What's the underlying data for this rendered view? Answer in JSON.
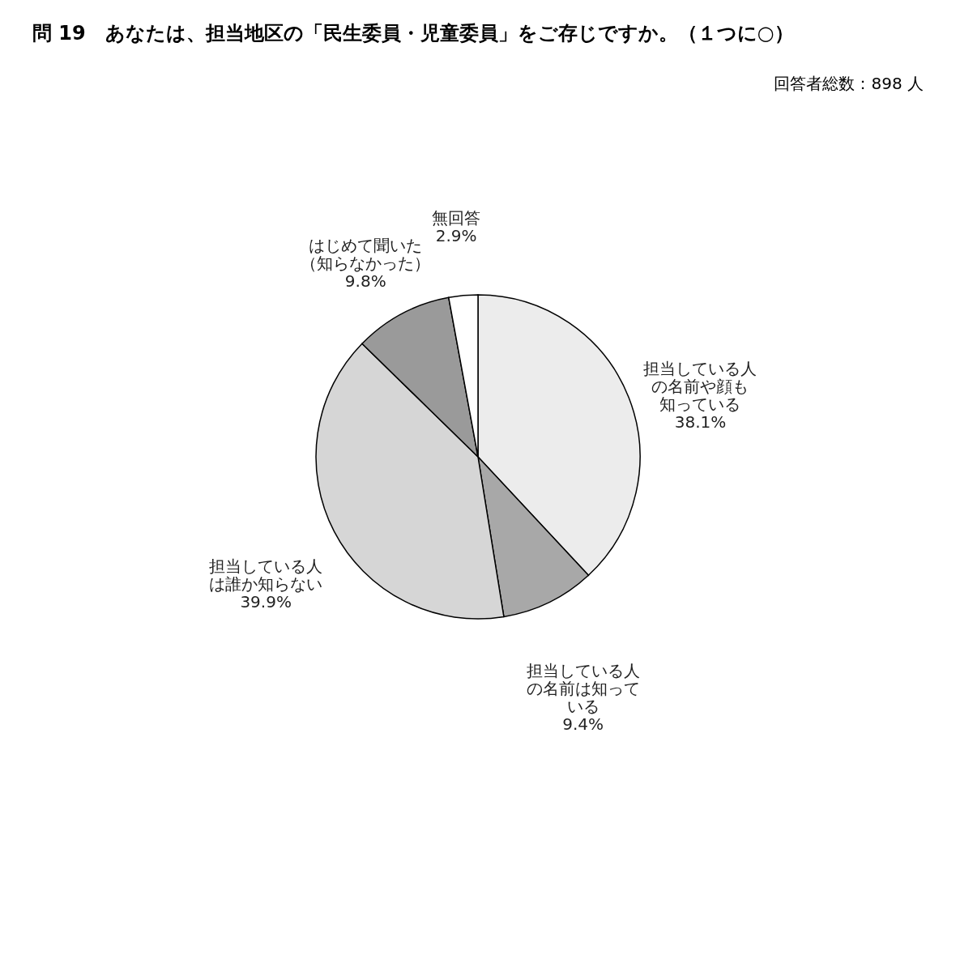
{
  "chart_data": {
    "type": "pie",
    "title": "問 19　あなたは、担当地区の「民生委員・児童委員」をご存じですか。（１つに○）",
    "annotations": [
      "回答者総数：898 人"
    ],
    "categories": [
      "担当している人の名前や顔も知っている",
      "担当している人の名前は知っている",
      "担当している人は誰か知らない",
      "はじめて聞いた（知らなかった）",
      "無回答"
    ],
    "values": [
      38.1,
      9.4,
      39.9,
      9.8,
      2.9
    ],
    "value_labels": [
      "38.1%",
      "9.4%",
      "39.9%",
      "9.8%",
      "2.9%"
    ],
    "colors": [
      "#ececec",
      "#a8a8a8",
      "#d6d6d6",
      "#9a9a9a",
      "#ffffff"
    ],
    "legend": false
  }
}
